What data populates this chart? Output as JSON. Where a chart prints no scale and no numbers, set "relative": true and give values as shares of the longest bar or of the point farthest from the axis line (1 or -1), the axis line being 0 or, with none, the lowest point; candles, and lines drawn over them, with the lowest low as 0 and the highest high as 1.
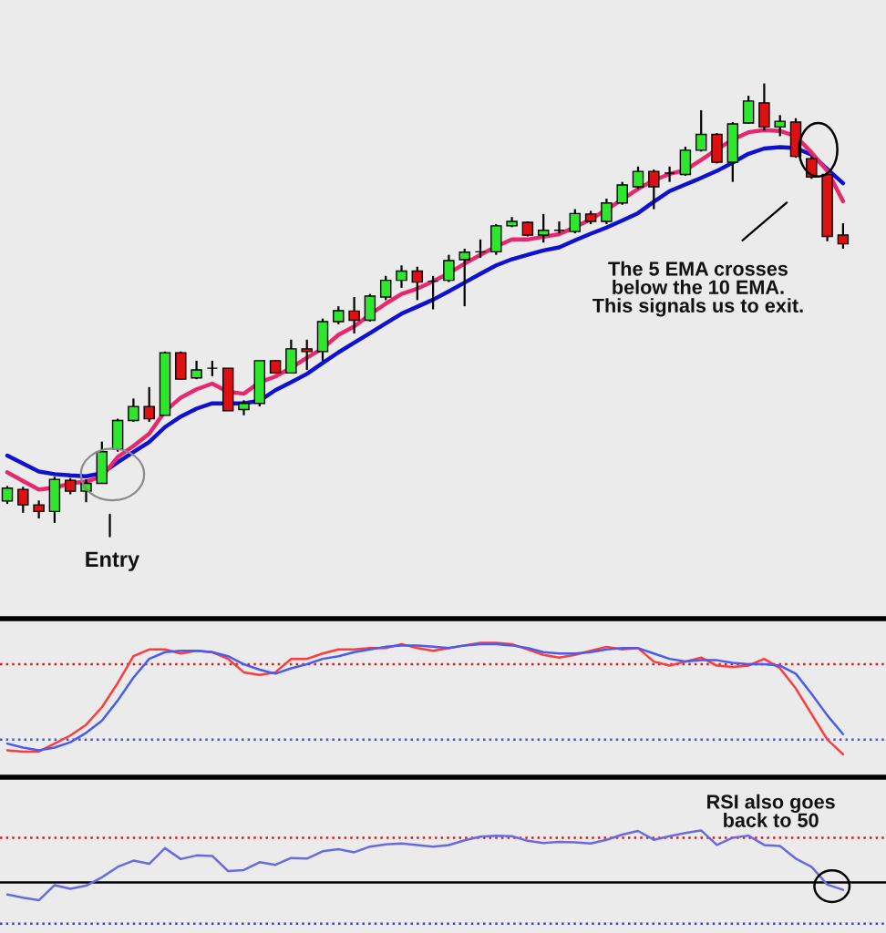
{
  "chart_data": [
    {
      "type": "candlestick",
      "relative": true,
      "categories": [
        null,
        null,
        null,
        null,
        null,
        null,
        null,
        null,
        null,
        null,
        null,
        null,
        null,
        null,
        null,
        null,
        null,
        null,
        null,
        null,
        null,
        null,
        null,
        null,
        null,
        null,
        null,
        null,
        null,
        null,
        null,
        null,
        null,
        null,
        null,
        null,
        null,
        null,
        null,
        null,
        null,
        null,
        null,
        null,
        null,
        null,
        null,
        null,
        null,
        null,
        null,
        null,
        null,
        null
      ],
      "ohlc": [
        [
          0.05,
          0.084,
          0.043,
          0.079
        ],
        [
          0.076,
          0.082,
          0.023,
          0.041
        ],
        [
          0.041,
          0.051,
          0.01,
          0.026
        ],
        [
          0.026,
          0.105,
          0,
          0.099
        ],
        [
          0.097,
          0.102,
          0.065,
          0.072
        ],
        [
          0.072,
          0.099,
          0.047,
          0.09
        ],
        [
          0.09,
          0.185,
          0.09,
          0.162
        ],
        [
          0.168,
          0.237,
          0.162,
          0.233
        ],
        [
          0.233,
          0.283,
          0.23,
          0.265
        ],
        [
          0.265,
          0.309,
          0.23,
          0.237
        ],
        [
          0.245,
          0.39,
          0.245,
          0.387
        ],
        [
          0.387,
          0.39,
          0.327,
          0.327
        ],
        [
          0.33,
          0.369,
          0.327,
          0.348
        ],
        [
          0.352,
          0.369,
          0.334,
          0.352
        ],
        [
          0.352,
          0.352,
          0.255,
          0.255
        ],
        [
          0.258,
          0.279,
          0.245,
          0.272
        ],
        [
          0.272,
          0.369,
          0.265,
          0.369
        ],
        [
          0.369,
          0.37,
          0.341,
          0.341
        ],
        [
          0.341,
          0.417,
          0.341,
          0.396
        ],
        [
          0.396,
          0.417,
          0.348,
          0.39
        ],
        [
          0.39,
          0.465,
          0.369,
          0.458
        ],
        [
          0.458,
          0.493,
          0.452,
          0.483
        ],
        [
          0.482,
          0.514,
          0.431,
          0.461
        ],
        [
          0.461,
          0.521,
          0.458,
          0.516
        ],
        [
          0.514,
          0.562,
          0.507,
          0.552
        ],
        [
          0.552,
          0.586,
          0.535,
          0.573
        ],
        [
          0.573,
          0.583,
          0.507,
          0.548
        ],
        [
          0.55,
          0.562,
          0.486,
          0.55
        ],
        [
          0.552,
          0.61,
          0.548,
          0.597
        ],
        [
          0.599,
          0.624,
          0.493,
          0.616
        ],
        [
          0.617,
          0.645,
          0.603,
          0.617
        ],
        [
          0.617,
          0.68,
          0.61,
          0.676
        ],
        [
          0.676,
          0.696,
          0.673,
          0.686
        ],
        [
          0.684,
          0.686,
          0.652,
          0.655
        ],
        [
          0.655,
          0.703,
          0.638,
          0.666
        ],
        [
          0.666,
          0.686,
          0.659,
          0.666
        ],
        [
          0.663,
          0.714,
          0.659,
          0.704
        ],
        [
          0.703,
          0.71,
          0.68,
          0.686
        ],
        [
          0.686,
          0.738,
          0.68,
          0.728
        ],
        [
          0.728,
          0.776,
          0.724,
          0.769
        ],
        [
          0.765,
          0.811,
          0.76,
          0.8
        ],
        [
          0.8,
          0.804,
          0.714,
          0.765
        ],
        [
          0.796,
          0.811,
          0.776,
          0.796
        ],
        [
          0.793,
          0.856,
          0.79,
          0.848
        ],
        [
          0.848,
          0.939,
          0.845,
          0.884
        ],
        [
          0.884,
          0.887,
          0.818,
          0.821
        ],
        [
          0.821,
          0.912,
          0.776,
          0.908
        ],
        [
          0.91,
          0.972,
          0.908,
          0.96
        ],
        [
          0.956,
          1,
          0.893,
          0.901
        ],
        [
          0.901,
          0.928,
          0.88,
          0.914
        ],
        [
          0.912,
          0.921,
          0.831,
          0.834
        ],
        [
          0.829,
          0.834,
          0.783,
          0.787
        ],
        [
          0.793,
          0.797,
          0.641,
          0.652
        ],
        [
          0.655,
          0.682,
          0.624,
          0.635
        ]
      ],
      "colors": [
        "#2ee62e",
        "#dd1111",
        "#dd1111",
        "#2ee62e",
        "#dd1111",
        "#2ee62e",
        "#2ee62e",
        "#2ee62e",
        "#2ee62e",
        "#dd1111",
        "#2ee62e",
        "#dd1111",
        "#2ee62e",
        "#000000",
        "#dd1111",
        "#2ee62e",
        "#2ee62e",
        "#dd1111",
        "#2ee62e",
        "#dd1111",
        "#2ee62e",
        "#2ee62e",
        "#dd1111",
        "#2ee62e",
        "#2ee62e",
        "#2ee62e",
        "#dd1111",
        "#000000",
        "#2ee62e",
        "#2ee62e",
        "#000000",
        "#2ee62e",
        "#2ee62e",
        "#dd1111",
        "#2ee62e",
        "#000000",
        "#2ee62e",
        "#dd1111",
        "#2ee62e",
        "#2ee62e",
        "#2ee62e",
        "#dd1111",
        "#000000",
        "#2ee62e",
        "#2ee62e",
        "#dd1111",
        "#2ee62e",
        "#2ee62e",
        "#dd1111",
        "#2ee62e",
        "#dd1111",
        "#dd1111",
        "#dd1111",
        "#dd1111"
      ],
      "series": [
        {
          "type": "line",
          "color": "#1010d0",
          "values": [
            0.153,
            0.135,
            0.117,
            0.111,
            0.108,
            0.106,
            0.113,
            0.138,
            0.161,
            0.184,
            0.218,
            0.242,
            0.26,
            0.272,
            0.272,
            0.272,
            0.278,
            0.302,
            0.32,
            0.339,
            0.364,
            0.388,
            0.41,
            0.432,
            0.454,
            0.476,
            0.492,
            0.508,
            0.527,
            0.547,
            0.567,
            0.586,
            0.6,
            0.61,
            0.62,
            0.627,
            0.643,
            0.658,
            0.672,
            0.688,
            0.705,
            0.731,
            0.755,
            0.77,
            0.785,
            0.801,
            0.82,
            0.84,
            0.852,
            0.855,
            0.853,
            0.838,
            0.805,
            0.773
          ]
        },
        {
          "type": "line",
          "color": "#e8286e",
          "values": [
            0.115,
            0.095,
            0.076,
            0.08,
            0.09,
            0.094,
            0.105,
            0.15,
            0.175,
            0.203,
            0.254,
            0.285,
            0.304,
            0.317,
            0.298,
            0.294,
            0.32,
            0.333,
            0.353,
            0.376,
            0.397,
            0.428,
            0.447,
            0.474,
            0.499,
            0.521,
            0.533,
            0.55,
            0.568,
            0.59,
            0.61,
            0.629,
            0.645,
            0.645,
            0.651,
            0.657,
            0.673,
            0.691,
            0.713,
            0.736,
            0.76,
            0.78,
            0.794,
            0.803,
            0.826,
            0.85,
            0.872,
            0.889,
            0.894,
            0.892,
            0.88,
            0.843,
            0.801,
            0.732
          ]
        }
      ],
      "annotations": [
        "Entry",
        "The 5 EMA crosses\nbelow the 10 EMA.\nThis signals us to exit."
      ]
    },
    {
      "type": "line",
      "relative": true,
      "categories": [
        null,
        null,
        null,
        null,
        null,
        null,
        null,
        null,
        null,
        null,
        null,
        null,
        null,
        null,
        null,
        null,
        null,
        null,
        null,
        null,
        null,
        null,
        null,
        null,
        null,
        null,
        null,
        null,
        null,
        null,
        null,
        null,
        null,
        null,
        null,
        null,
        null,
        null,
        null,
        null,
        null,
        null,
        null,
        null,
        null,
        null,
        null,
        null,
        null,
        null,
        null,
        null,
        null,
        null
      ],
      "series": [
        {
          "color": "#ff3b3b",
          "values": [
            0.2,
            0.19,
            0.19,
            0.25,
            0.31,
            0.39,
            0.52,
            0.7,
            0.9,
            0.95,
            0.95,
            0.92,
            0.94,
            0.93,
            0.88,
            0.78,
            0.76,
            0.78,
            0.88,
            0.88,
            0.92,
            0.95,
            0.95,
            0.96,
            0.96,
            0.99,
            0.96,
            0.94,
            0.96,
            0.98,
            1.0,
            1.0,
            0.99,
            0.95,
            0.91,
            0.89,
            0.91,
            0.94,
            0.97,
            0.95,
            0.96,
            0.86,
            0.83,
            0.86,
            0.89,
            0.83,
            0.82,
            0.83,
            0.88,
            0.81,
            0.66,
            0.47,
            0.28,
            0.17
          ]
        },
        {
          "color": "#4a5cf0",
          "values": [
            0.25,
            0.22,
            0.2,
            0.22,
            0.26,
            0.33,
            0.42,
            0.57,
            0.74,
            0.88,
            0.93,
            0.94,
            0.94,
            0.93,
            0.9,
            0.84,
            0.8,
            0.77,
            0.81,
            0.84,
            0.88,
            0.9,
            0.93,
            0.95,
            0.97,
            0.98,
            0.98,
            0.97,
            0.96,
            0.98,
            0.99,
            0.99,
            0.98,
            0.96,
            0.93,
            0.92,
            0.92,
            0.93,
            0.95,
            0.96,
            0.96,
            0.92,
            0.88,
            0.86,
            0.87,
            0.87,
            0.85,
            0.84,
            0.84,
            0.83,
            0.77,
            0.62,
            0.46,
            0.32
          ]
        }
      ],
      "ref_lines": [
        {
          "axis": "y",
          "value": 0.84,
          "color": "#d02020",
          "line_style": "dotted"
        },
        {
          "axis": "y",
          "value": 0.28,
          "color": "#5050d0",
          "line_style": "dotted"
        }
      ]
    },
    {
      "type": "line",
      "relative": true,
      "categories": [
        null,
        null,
        null,
        null,
        null,
        null,
        null,
        null,
        null,
        null,
        null,
        null,
        null,
        null,
        null,
        null,
        null,
        null,
        null,
        null,
        null,
        null,
        null,
        null,
        null,
        null,
        null,
        null,
        null,
        null,
        null,
        null,
        null,
        null,
        null,
        null,
        null,
        null,
        null,
        null,
        null,
        null,
        null,
        null,
        null,
        null,
        null,
        null,
        null,
        null,
        null,
        null,
        null,
        null
      ],
      "series": [
        {
          "color": "#6a6ae0",
          "values": [
            -0.23,
            -0.29,
            -0.34,
            -0.05,
            -0.12,
            -0.06,
            0.1,
            0.3,
            0.42,
            0.36,
            0.66,
            0.45,
            0.52,
            0.51,
            0.22,
            0.24,
            0.39,
            0.34,
            0.47,
            0.46,
            0.6,
            0.64,
            0.58,
            0.69,
            0.73,
            0.75,
            0.72,
            0.69,
            0.72,
            0.81,
            0.88,
            0.9,
            0.89,
            0.8,
            0.76,
            0.78,
            0.77,
            0.75,
            0.82,
            0.92,
            0.99,
            0.82,
            0.89,
            0.95,
            1.0,
            0.72,
            0.86,
            0.9,
            0.72,
            0.7,
            0.46,
            0.3,
            -0.04,
            -0.14
          ]
        }
      ],
      "ref_lines": [
        {
          "axis": "y",
          "value": 0.86,
          "color": "#d02020",
          "line_style": "dotted"
        },
        {
          "axis": "y",
          "value": -0.79,
          "color": "#4040c0",
          "line_style": "dotted"
        }
      ],
      "annotations": [
        "RSI also goes\nback to 50"
      ]
    }
  ]
}
